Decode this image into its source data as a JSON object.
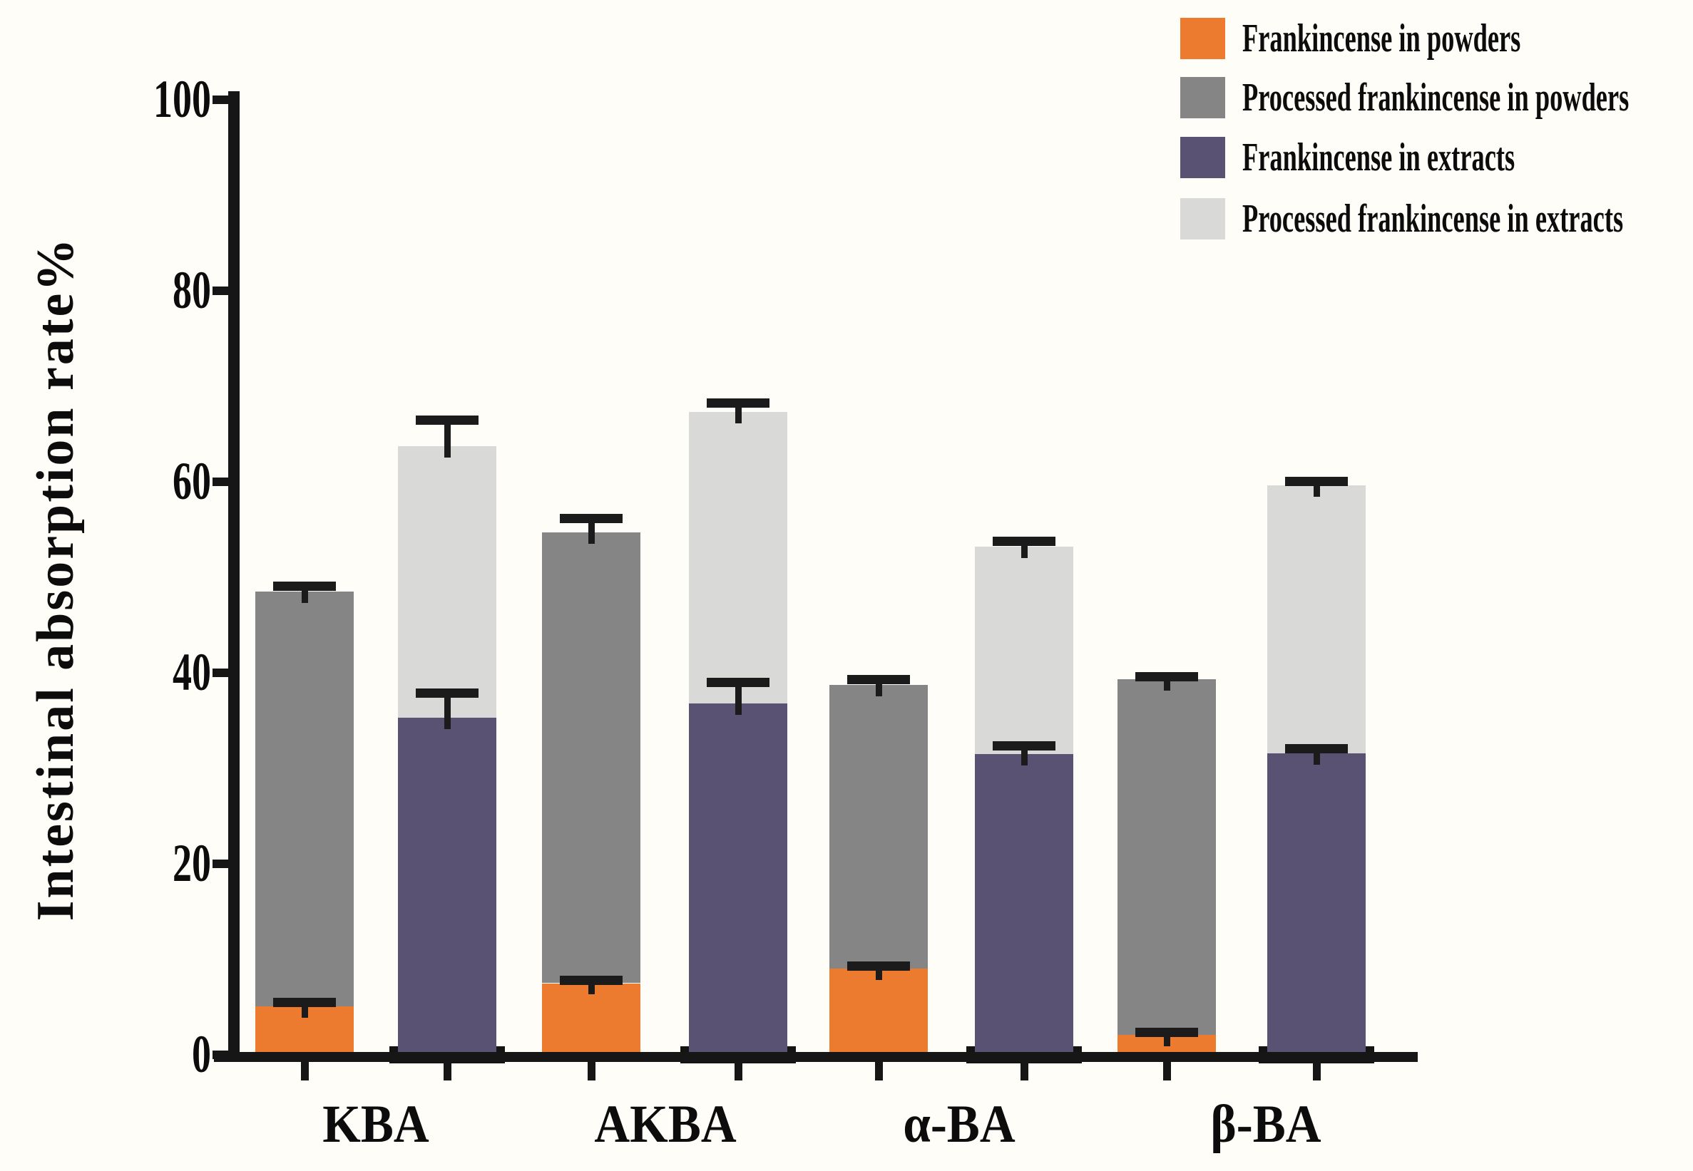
{
  "figure": {
    "background_color": "#FFFDF7",
    "y_axis_title": "Intestinal absorption rate%"
  },
  "colors": {
    "frankincense_in_powders": "#EC7A2F",
    "processed_frankincense_in_powders": "#858585",
    "frankincense_in_extracts": "#595273",
    "processed_frankincense_in_extracts": "#D9D9D7",
    "axis": "#161616",
    "error_bar": "#1B1B1B"
  },
  "legend": {
    "position": "top-right",
    "items": [
      {
        "label": "Frankincense in powders",
        "color": "#EC7A2F"
      },
      {
        "label": "Processed frankincense in powders",
        "color": "#858585"
      },
      {
        "label": "Frankincense in extracts",
        "color": "#595273"
      },
      {
        "label": "Processed frankincense in extracts",
        "color": "#D9D9D7"
      }
    ]
  },
  "chart_data": {
    "type": "bar",
    "stacked": true,
    "orientation": "vertical",
    "title": "",
    "ylabel": "Intestinal absorption rate%",
    "xlabel": "",
    "ylim": [
      0,
      100
    ],
    "yticks": [
      0,
      20,
      40,
      60,
      80,
      100
    ],
    "grid": false,
    "categories": [
      "KBA",
      "AKBA",
      "α-BA",
      "β-BA"
    ],
    "series_names": [
      "Frankincense in powders",
      "Processed frankincense in powders",
      "Frankincense in extracts",
      "Processed frankincense in extracts"
    ],
    "note": "Each category has two stacked bars: powders (orange bottom + mid-gray top) and extracts (purple bottom + light-gray top). Values are percent; *_err_top are the tops of the error-bar caps.",
    "groups": [
      {
        "category": "KBA",
        "powders": {
          "frankincense": 5.1,
          "frankincense_err_top": 5.5,
          "processed_total": 48.5,
          "processed_err_top": 49.1
        },
        "extracts": {
          "frankincense": 35.3,
          "frankincense_err_top": 37.9,
          "processed_total": 63.7,
          "processed_err_top": 66.5
        }
      },
      {
        "category": "AKBA",
        "powders": {
          "frankincense": 7.5,
          "frankincense_err_top": 7.8,
          "processed_total": 54.7,
          "processed_err_top": 56.2
        },
        "extracts": {
          "frankincense": 36.8,
          "frankincense_err_top": 39.0,
          "processed_total": 67.3,
          "processed_err_top": 68.3
        }
      },
      {
        "category": "α-BA",
        "powders": {
          "frankincense": 9.0,
          "frankincense_err_top": 9.3,
          "processed_total": 38.7,
          "processed_err_top": 39.3
        },
        "extracts": {
          "frankincense": 31.5,
          "frankincense_err_top": 32.4,
          "processed_total": 53.2,
          "processed_err_top": 53.8
        }
      },
      {
        "category": "β-BA",
        "powders": {
          "frankincense": 2.1,
          "frankincense_err_top": 2.4,
          "processed_total": 39.3,
          "processed_err_top": 39.6
        },
        "extracts": {
          "frankincense": 31.6,
          "frankincense_err_top": 32.1,
          "processed_total": 59.6,
          "processed_err_top": 60.1
        }
      }
    ]
  }
}
